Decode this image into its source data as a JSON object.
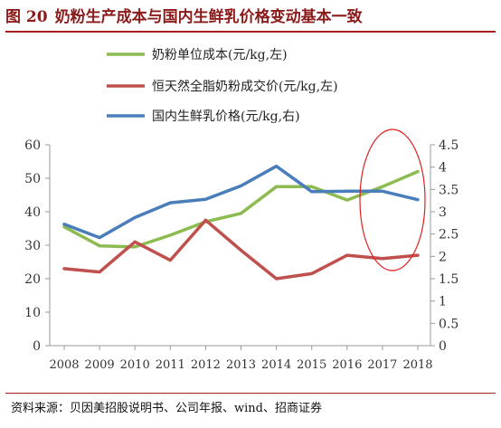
{
  "header": {
    "figure_number": "图 20",
    "title": "奶粉生产成本与国内生鲜乳价格变动基本一致"
  },
  "footer": {
    "source": "资料来源：贝因美招股说明书、公司年报、wind、招商证券"
  },
  "colors": {
    "title": "#8b1a1a",
    "rule": "#a61f1f",
    "highlight_ellipse": "#e02020"
  },
  "chart_data": {
    "type": "line",
    "x": [
      "2008",
      "2009",
      "2010",
      "2011",
      "2012",
      "2013",
      "2014",
      "2015",
      "2016",
      "2017",
      "2018"
    ],
    "left_axis": {
      "ylim": [
        0,
        60
      ],
      "ticks": [
        "0",
        "10",
        "20",
        "30",
        "40",
        "50",
        "60"
      ]
    },
    "right_axis": {
      "ylim": [
        0,
        4.5
      ],
      "ticks": [
        "0",
        "0.5",
        "1",
        "1.5",
        "2",
        "2.5",
        "3",
        "3.5",
        "4",
        "4.5"
      ]
    },
    "series": [
      {
        "name": "奶粉单位成本(元/kg,左)",
        "axis": "left",
        "color": "#8cbb4f",
        "values": [
          35.5,
          29.8,
          29.5,
          33.0,
          37.0,
          39.5,
          47.5,
          47.5,
          43.5,
          47.5,
          52.0
        ]
      },
      {
        "name": "恒天然全脂奶粉成交价(元/kg,左)",
        "axis": "left",
        "color": "#c0504d",
        "values": [
          23.0,
          22.0,
          31.0,
          25.5,
          37.5,
          28.5,
          20.0,
          21.5,
          27.0,
          26.0,
          27.0
        ]
      },
      {
        "name": "国内生鲜乳价格(元/kg,右)",
        "axis": "right",
        "color": "#4a7ebb",
        "values": [
          2.72,
          2.42,
          2.87,
          3.2,
          3.28,
          3.58,
          4.02,
          3.45,
          3.46,
          3.46,
          3.27
        ]
      }
    ],
    "legend_position": "top-center",
    "grid": false,
    "annotation": "red ellipse highlighting 2017-2018"
  }
}
